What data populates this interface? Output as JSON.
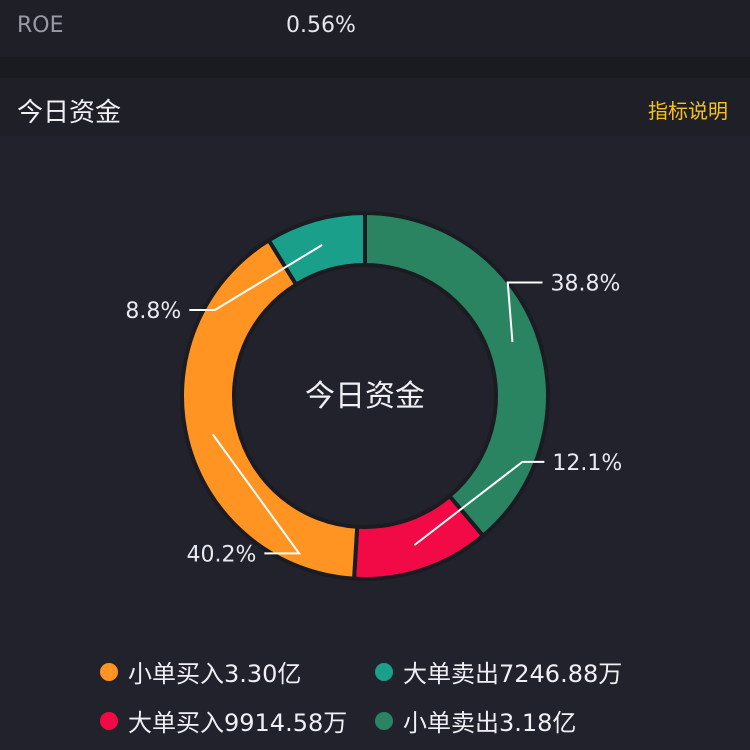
{
  "summary_row": {
    "label": "ROE",
    "value": "0.56%"
  },
  "section": {
    "title": "今日资金",
    "info_link": "指标说明"
  },
  "chart_data": {
    "type": "pie",
    "center_label": "今日资金",
    "slices": [
      {
        "label": "小单卖出3.18亿",
        "value": 38.8,
        "display": "38.8%",
        "color": "#2a8461"
      },
      {
        "label": "大单买入9914.58万",
        "value": 12.1,
        "display": "12.1%",
        "color": "#f20a46"
      },
      {
        "label": "小单买入3.30亿",
        "value": 40.2,
        "display": "40.2%",
        "color": "#ff9422"
      },
      {
        "label": "大单卖出7246.88万",
        "value": 8.8,
        "display": "8.8%",
        "color": "#1aa08a"
      }
    ],
    "legend": [
      {
        "label": "小单买入3.30亿",
        "color": "#ff9422"
      },
      {
        "label": "大单卖出7246.88万",
        "color": "#1aa08a"
      },
      {
        "label": "大单买入9914.58万",
        "color": "#f20a46"
      },
      {
        "label": "小单卖出3.18亿",
        "color": "#2a8461"
      }
    ]
  }
}
